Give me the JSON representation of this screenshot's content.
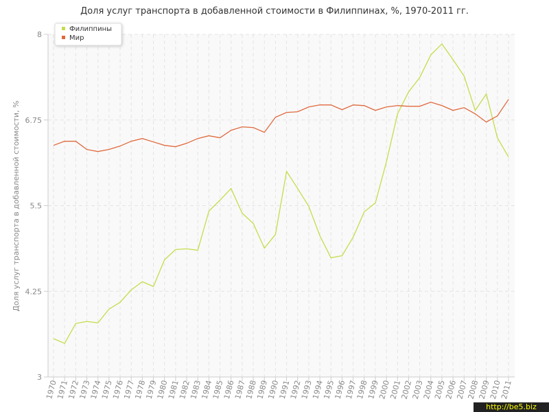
{
  "chart_data": {
    "type": "line",
    "title": "Доля услуг транспорта в добавленной стоимости в Филиппинах, %, 1970-2011 гг.",
    "y_label": "Доля услуг транспорта в добавленной стоимости, %",
    "watermark": "http://be5.biz",
    "categories": [
      "1970",
      "1971",
      "1972",
      "1973",
      "1974",
      "1975",
      "1976",
      "1977",
      "1978",
      "1979",
      "1980",
      "1981",
      "1982",
      "1983",
      "1984",
      "1985",
      "1986",
      "1987",
      "1988",
      "1989",
      "1990",
      "1991",
      "1992",
      "1993",
      "1994",
      "1995",
      "1996",
      "1997",
      "1998",
      "1999",
      "2000",
      "2001",
      "2002",
      "2003",
      "2004",
      "2005",
      "2006",
      "2007",
      "2008",
      "2009",
      "2010",
      "2011"
    ],
    "series": [
      {
        "name": "Филиппины",
        "color": "#c5dc4a",
        "values": [
          3.56,
          3.49,
          3.78,
          3.81,
          3.79,
          3.99,
          4.09,
          4.27,
          4.39,
          4.32,
          4.71,
          4.86,
          4.87,
          4.85,
          5.42,
          5.58,
          5.75,
          5.39,
          5.24,
          4.88,
          5.08,
          6.0,
          5.75,
          5.49,
          5.06,
          4.74,
          4.77,
          5.04,
          5.41,
          5.54,
          6.14,
          6.84,
          7.16,
          7.37,
          7.7,
          7.86,
          7.63,
          7.39,
          6.89,
          7.13,
          6.49,
          6.21
        ]
      },
      {
        "name": "Мир",
        "color": "#e0683c",
        "values": [
          6.38,
          6.44,
          6.44,
          6.32,
          6.29,
          6.32,
          6.37,
          6.44,
          6.48,
          6.43,
          6.38,
          6.36,
          6.41,
          6.48,
          6.52,
          6.49,
          6.6,
          6.65,
          6.64,
          6.57,
          6.79,
          6.86,
          6.87,
          6.94,
          6.97,
          6.97,
          6.9,
          6.97,
          6.96,
          6.89,
          6.94,
          6.96,
          6.95,
          6.95,
          7.01,
          6.96,
          6.89,
          6.93,
          6.84,
          6.72,
          6.81,
          7.05
        ]
      }
    ],
    "ylim": [
      3,
      8
    ],
    "yticks": [
      3,
      4.25,
      5.5,
      6.75,
      8
    ],
    "grid": true,
    "legend": "top-left"
  }
}
